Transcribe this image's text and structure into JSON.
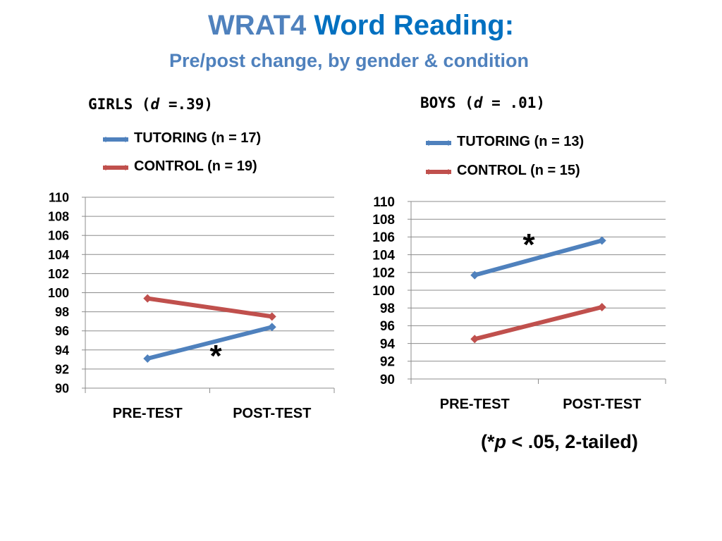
{
  "header": {
    "title_part1": "WRAT4",
    "title_part2": "Word Reading:",
    "subtitle": "Pre/post change, by gender & condition"
  },
  "footnote": {
    "open": "(*",
    "p": "p",
    "rest": " < .05, 2-tailed)"
  },
  "colors": {
    "tutoring": "#4f81bd",
    "control": "#c0504d",
    "grid": "#8c8c8c"
  },
  "chart_data": [
    {
      "type": "line",
      "title_label": "GIRLS (",
      "title_d": "d",
      "title_value": " =.39)",
      "categories": [
        "PRE-TEST",
        "POST-TEST"
      ],
      "ylim": [
        90,
        110
      ],
      "ytick_step": 2,
      "grid": true,
      "legend_position": "top",
      "series": [
        {
          "name": "TUTORING (n = 17)",
          "values": [
            93.1,
            96.4
          ]
        },
        {
          "name": "CONTROL (n = 19)",
          "values": [
            99.4,
            97.5
          ]
        }
      ],
      "annotation": "*"
    },
    {
      "type": "line",
      "title_label": "BOYS (",
      "title_d": "d",
      "title_value": " = .01)",
      "categories": [
        "PRE-TEST",
        "POST-TEST"
      ],
      "ylim": [
        90,
        110
      ],
      "ytick_step": 2,
      "grid": true,
      "legend_position": "top",
      "series": [
        {
          "name": "TUTORING (n = 13)",
          "values": [
            101.7,
            105.6
          ]
        },
        {
          "name": "CONTROL (n = 15)",
          "values": [
            94.5,
            98.1
          ]
        }
      ],
      "annotation": "*"
    }
  ]
}
